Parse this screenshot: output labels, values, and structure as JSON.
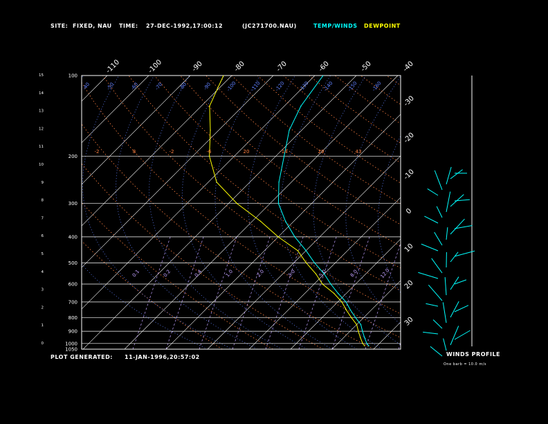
{
  "header": {
    "site_label": "SITE:",
    "site_value": "FIXED, NAU",
    "time_label": "TIME:",
    "time_value": "27-DEC-1992,17:00:12",
    "file": "(JC271700.NAU)",
    "temp_winds": "TEMP/WINDS",
    "dewpoint": "DEWPOINT"
  },
  "footer": {
    "plot_generated_label": "PLOT GENERATED:",
    "plot_generated_value": "11-JAN-1996,20:57:02"
  },
  "wind_panel": {
    "title": "WINDS PROFILE",
    "scale": "One barb = 10.0 m/s"
  },
  "colors": {
    "temp": "#00ffff",
    "dewpoint": "#ffff00",
    "grid": "#ffffff",
    "dry_adiabat": "#ff8040",
    "moist_adiabat": "#6080ff",
    "mixing_ratio": "#c0a0ff"
  },
  "chart_data": {
    "type": "line",
    "title": "",
    "pressure_labels": [
      "100",
      "200",
      "300",
      "400",
      "500",
      "600",
      "700",
      "800",
      "900",
      "1000",
      "1050"
    ],
    "height_km_labels": [
      "0",
      "1",
      "2",
      "3",
      "4",
      "5",
      "6",
      "7",
      "8",
      "9",
      "10",
      "11",
      "12",
      "13",
      "14",
      "15"
    ],
    "temp_labels_top": [
      "-110",
      "-100",
      "-90",
      "-80",
      "-70",
      "-60",
      "-50",
      "-40"
    ],
    "temp_labels_right": [
      "-30",
      "-20",
      "-10",
      "0",
      "10",
      "20",
      "30"
    ],
    "dry_adiabat_labels": [
      "-2",
      "8",
      "-2",
      "-6",
      "20",
      "-14",
      "29",
      "43"
    ],
    "mixing_ratio_labels": [
      "0.1",
      "0.2",
      "0.4",
      "1.0",
      "2.0",
      "3.0",
      "5.0",
      "8.0",
      "12.0"
    ],
    "moist_adiabat_labels": [
      "-40",
      "-50",
      "-60",
      "-70",
      "-80",
      "-90",
      "-100",
      "-110",
      "-120",
      "-130",
      "-140",
      "-150",
      "-160"
    ],
    "series": [
      {
        "name": "TEMP/WINDS",
        "color": "#00ffff",
        "points": [
          {
            "p": 100,
            "t": -58
          },
          {
            "p": 130,
            "t": -56
          },
          {
            "p": 160,
            "t": -53
          },
          {
            "p": 200,
            "t": -48
          },
          {
            "p": 250,
            "t": -43
          },
          {
            "p": 300,
            "t": -38
          },
          {
            "p": 350,
            "t": -32
          },
          {
            "p": 400,
            "t": -26
          },
          {
            "p": 450,
            "t": -20
          },
          {
            "p": 500,
            "t": -15
          },
          {
            "p": 550,
            "t": -10
          },
          {
            "p": 600,
            "t": -6
          },
          {
            "p": 650,
            "t": -2
          },
          {
            "p": 700,
            "t": 2
          },
          {
            "p": 750,
            "t": 5
          },
          {
            "p": 800,
            "t": 8
          },
          {
            "p": 850,
            "t": 11
          },
          {
            "p": 900,
            "t": 13
          },
          {
            "p": 950,
            "t": 15
          },
          {
            "p": 1000,
            "t": 17
          },
          {
            "p": 1020,
            "t": 18
          }
        ]
      },
      {
        "name": "DEWPOINT",
        "color": "#ffff00",
        "points": [
          {
            "p": 100,
            "t": -82
          },
          {
            "p": 130,
            "t": -78
          },
          {
            "p": 160,
            "t": -72
          },
          {
            "p": 200,
            "t": -66
          },
          {
            "p": 250,
            "t": -58
          },
          {
            "p": 300,
            "t": -48
          },
          {
            "p": 350,
            "t": -38
          },
          {
            "p": 400,
            "t": -30
          },
          {
            "p": 450,
            "t": -22
          },
          {
            "p": 500,
            "t": -17
          },
          {
            "p": 550,
            "t": -12
          },
          {
            "p": 600,
            "t": -8
          },
          {
            "p": 650,
            "t": -3
          },
          {
            "p": 700,
            "t": 1
          },
          {
            "p": 750,
            "t": 4
          },
          {
            "p": 800,
            "t": 7
          },
          {
            "p": 850,
            "t": 10
          },
          {
            "p": 900,
            "t": 12
          },
          {
            "p": 950,
            "t": 14
          },
          {
            "p": 1000,
            "t": 16
          },
          {
            "p": 1020,
            "t": 17
          }
        ]
      }
    ]
  }
}
